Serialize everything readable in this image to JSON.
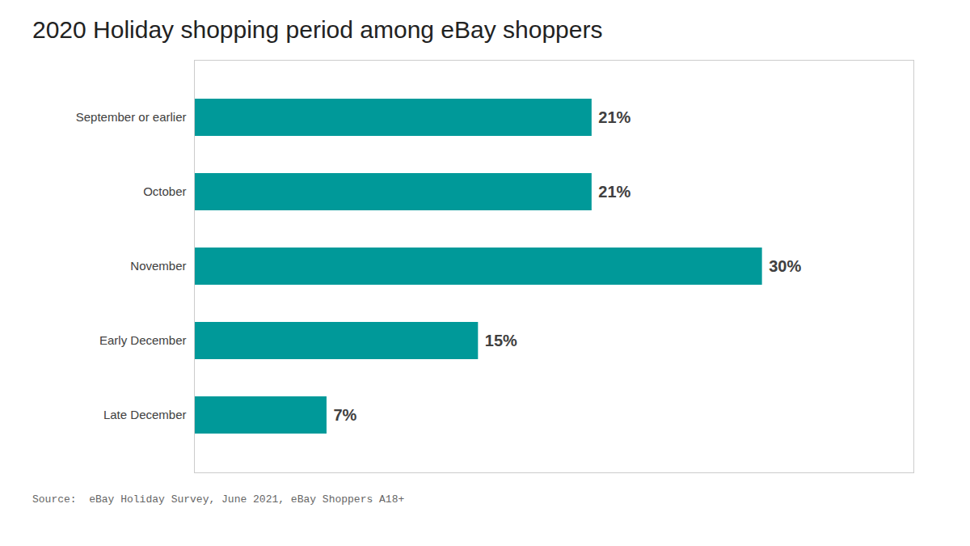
{
  "chart_data": {
    "type": "bar",
    "orientation": "horizontal",
    "title": "2020 Holiday shopping period among eBay shoppers",
    "categories": [
      "September or earlier",
      "October",
      "November",
      "Early December",
      "Late December"
    ],
    "values": [
      21,
      21,
      30,
      15,
      7
    ],
    "value_labels": [
      "21%",
      "21%",
      "30%",
      "15%",
      "7%"
    ],
    "data_labels": true,
    "color": "#009999",
    "xlim": [
      0,
      38
    ],
    "tick_labels": "y",
    "grid": false,
    "annotations": [
      "Source:  eBay Holiday Survey, June 2021, eBay Shoppers A18+"
    ]
  }
}
